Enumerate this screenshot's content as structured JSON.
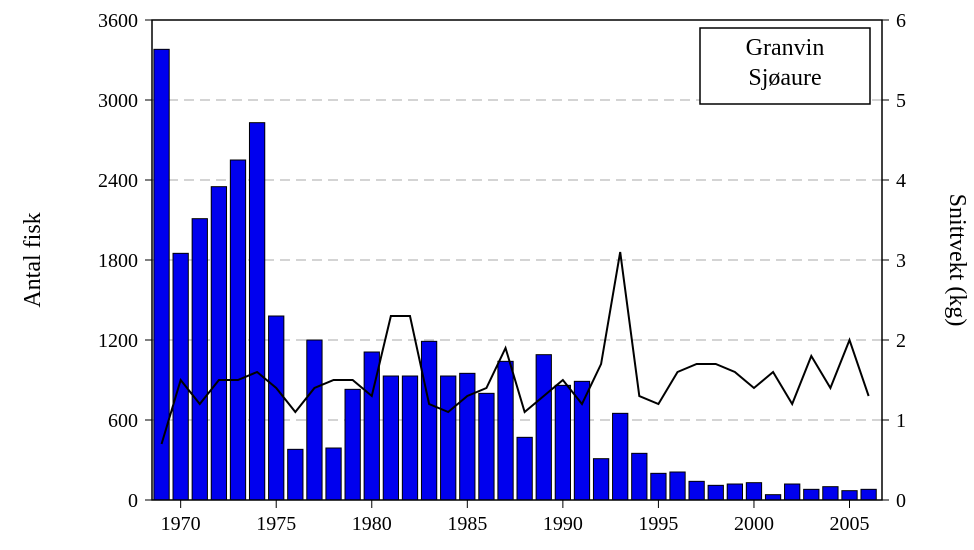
{
  "chart_data": {
    "type": "bar-line",
    "annotation": [
      "Granvin",
      "Sjøaure"
    ],
    "ylabel": "Antal fisk",
    "y2label": "Snittvekt (kg)",
    "x": [
      1969,
      1970,
      1971,
      1972,
      1973,
      1974,
      1975,
      1976,
      1977,
      1978,
      1979,
      1980,
      1981,
      1982,
      1983,
      1984,
      1985,
      1986,
      1987,
      1988,
      1989,
      1990,
      1991,
      1992,
      1993,
      1994,
      1995,
      1996,
      1997,
      1998,
      1999,
      2000,
      2001,
      2002,
      2003,
      2004,
      2005,
      2006
    ],
    "series": [
      {
        "type": "bar",
        "color": "#0000ee",
        "values": [
          3380,
          1850,
          2110,
          2350,
          2550,
          2830,
          1380,
          380,
          1200,
          390,
          830,
          1110,
          930,
          930,
          1190,
          930,
          950,
          800,
          1040,
          470,
          1090,
          860,
          890,
          310,
          650,
          350,
          200,
          210,
          140,
          110,
          120,
          130,
          40,
          120,
          80,
          100,
          70,
          80
        ]
      },
      {
        "type": "line",
        "axis": "y2",
        "color": "#000000",
        "values": [
          0.7,
          1.5,
          1.2,
          1.5,
          1.5,
          1.6,
          1.4,
          1.1,
          1.4,
          1.5,
          1.5,
          1.3,
          2.3,
          2.3,
          1.2,
          1.1,
          1.3,
          1.4,
          1.9,
          1.1,
          1.3,
          1.5,
          1.2,
          1.7,
          3.1,
          1.3,
          1.2,
          1.6,
          1.7,
          1.7,
          1.6,
          1.4,
          1.6,
          1.2,
          1.8,
          1.4,
          2.0,
          1.3
        ]
      }
    ],
    "xlim": [
      1968.5,
      2006.7
    ],
    "xticks": [
      1970,
      1975,
      1980,
      1985,
      1990,
      1995,
      2000,
      2005
    ],
    "ylim": [
      0,
      3600
    ],
    "yticks": [
      0,
      600,
      1200,
      1800,
      2400,
      3000,
      3600
    ],
    "y2lim": [
      0,
      6
    ],
    "y2ticks": [
      0,
      1,
      2,
      3,
      4,
      5,
      6
    ],
    "grid": true
  }
}
